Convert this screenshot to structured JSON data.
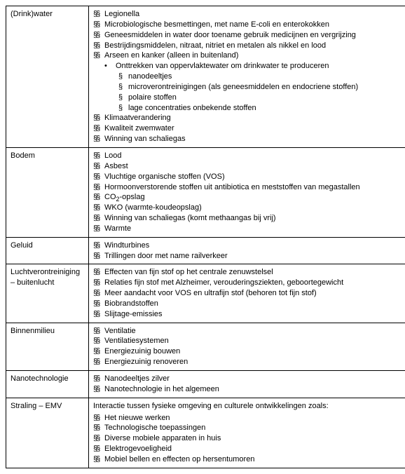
{
  "rows": [
    {
      "label": "(Drink)water",
      "items": [
        {
          "level": 0,
          "marker": "§§",
          "text": "Legionella"
        },
        {
          "level": 0,
          "marker": "§§",
          "text": "Microbiologische besmettingen, met name E-coli en enterokokken"
        },
        {
          "level": 0,
          "marker": "§§",
          "text": "Geneesmiddelen in water door toename gebruik medicijnen en vergrijzing"
        },
        {
          "level": 0,
          "marker": "§§",
          "text": "Bestrijdingsmiddelen, nitraat, nitriet en metalen als nikkel en lood"
        },
        {
          "level": 0,
          "marker": "§§",
          "text": "Arseen en kanker (alleen in buitenland)"
        },
        {
          "level": 1,
          "marker": "•",
          "text": "Onttrekken van oppervlaktewater om drinkwater te produceren"
        },
        {
          "level": 2,
          "marker": "§",
          "text": "nanodeeltjes"
        },
        {
          "level": 2,
          "marker": "§",
          "text": "microverontreinigingen (als geneesmiddelen en endocriene stoffen)"
        },
        {
          "level": 2,
          "marker": "§",
          "text": "polaire stoffen"
        },
        {
          "level": 2,
          "marker": "§",
          "text": "lage concentraties onbekende stoffen"
        },
        {
          "level": 0,
          "marker": "§§",
          "text": "Klimaatverandering"
        },
        {
          "level": 0,
          "marker": "§§",
          "text": "Kwaliteit zwemwater"
        },
        {
          "level": 0,
          "marker": "§§",
          "text": "Winning van schaliegas"
        }
      ]
    },
    {
      "label": "Bodem",
      "items": [
        {
          "level": 0,
          "marker": "§§",
          "text": "Lood"
        },
        {
          "level": 0,
          "marker": "§§",
          "text": "Asbest"
        },
        {
          "level": 0,
          "marker": "§§",
          "text": "Vluchtige organische stoffen (VOS)"
        },
        {
          "level": 0,
          "marker": "§§",
          "text": "Hormoonverstorende stoffen uit antibiotica en meststoffen van megastallen"
        },
        {
          "level": 0,
          "marker": "§§",
          "html": "CO<sub>2</sub>-opslag"
        },
        {
          "level": 0,
          "marker": "§§",
          "text": "WKO (warmte-koudeopslag)"
        },
        {
          "level": 0,
          "marker": "§§",
          "text": "Winning van schaliegas (komt methaangas bij vrij)"
        },
        {
          "level": 0,
          "marker": "§§",
          "text": "Warmte"
        }
      ]
    },
    {
      "label": "Geluid",
      "items": [
        {
          "level": 0,
          "marker": "§§",
          "text": "Windturbines"
        },
        {
          "level": 0,
          "marker": "§§",
          "text": "Trillingen door met name railverkeer"
        }
      ]
    },
    {
      "label": "Luchtverontreiniging – buitenlucht",
      "items": [
        {
          "level": 0,
          "marker": "§§",
          "text": "Effecten van fijn stof op het centrale zenuwstelsel"
        },
        {
          "level": 0,
          "marker": "§§",
          "text": "Relaties fijn stof met Alzheimer, verouderingsziekten, geboortegewicht"
        },
        {
          "level": 0,
          "marker": "§§",
          "text": "Meer aandacht voor VOS en ultrafijn stof (behoren tot fijn stof)"
        },
        {
          "level": 0,
          "marker": "§§",
          "text": "Biobrandstoffen"
        },
        {
          "level": 0,
          "marker": "§§",
          "text": "Slijtage-emissies"
        }
      ]
    },
    {
      "label": "Binnenmilieu",
      "items": [
        {
          "level": 0,
          "marker": "§§",
          "text": "Ventilatie"
        },
        {
          "level": 0,
          "marker": "§§",
          "text": "Ventilatiesystemen"
        },
        {
          "level": 0,
          "marker": "§§",
          "text": "Energiezuinig bouwen"
        },
        {
          "level": 0,
          "marker": "§§",
          "text": "Energiezuinig renoveren"
        }
      ]
    },
    {
      "label": "Nanotechnologie",
      "items": [
        {
          "level": 0,
          "marker": "§§",
          "text": "Nanodeeltjes zilver"
        },
        {
          "level": 0,
          "marker": "§§",
          "text": "Nanotechnologie in het algemeen"
        }
      ]
    },
    {
      "label": "Straling – EMV",
      "intro": "Interactie tussen fysieke omgeving en culturele ontwikkelingen zoals:",
      "items": [
        {
          "level": 0,
          "marker": "§§",
          "text": "Het nieuwe werken"
        },
        {
          "level": 0,
          "marker": "§§",
          "text": "Technologische toepassingen"
        },
        {
          "level": 0,
          "marker": "§§",
          "text": "Diverse mobiele apparaten in huis"
        },
        {
          "level": 0,
          "marker": "§§",
          "text": "Elektrogevoeligheid"
        },
        {
          "level": 0,
          "marker": "§§",
          "text": "Mobiel bellen en effecten op hersentumoren"
        }
      ]
    }
  ]
}
